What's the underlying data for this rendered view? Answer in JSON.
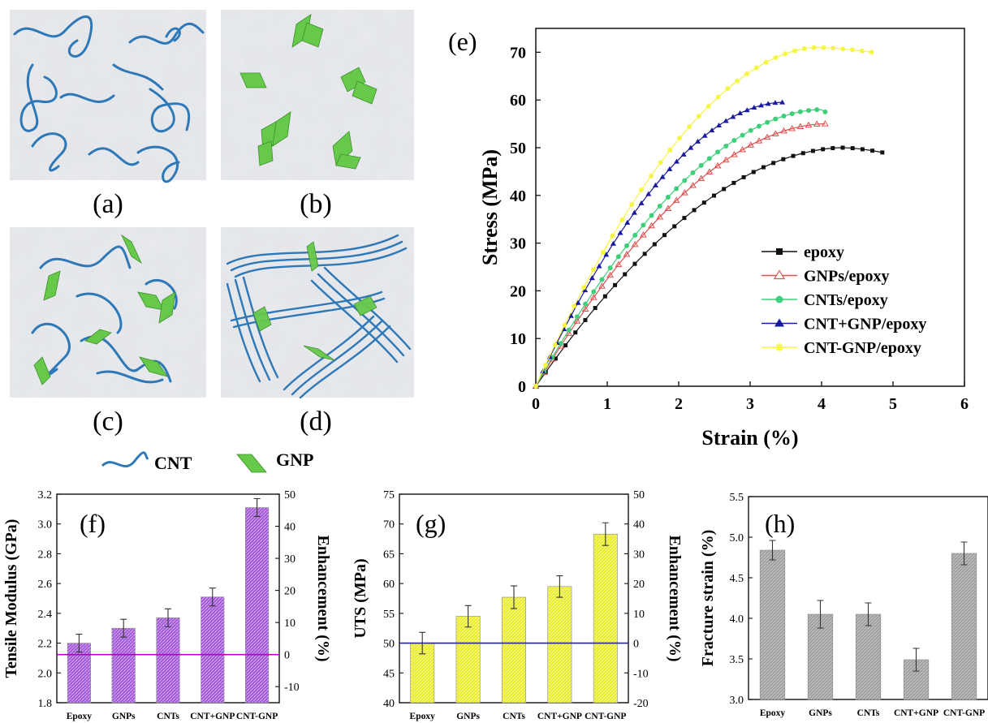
{
  "schematics": [
    {
      "label": "(a)",
      "kind": "cnt"
    },
    {
      "label": "(b)",
      "kind": "gnp"
    },
    {
      "label": "(c)",
      "kind": "mixed"
    },
    {
      "label": "(d)",
      "kind": "hybrid"
    }
  ],
  "schematic_legend": {
    "cnt_label": "CNT",
    "gnp_label": "GNP"
  },
  "colors": {
    "cnt": "#2f78b7",
    "gnp": "#66c94a",
    "purple_bar": "#a35ad8",
    "yellow_bar": "#e8ec2a",
    "gray_bar": "#a8a8a8",
    "base_line_f": "#b400c8",
    "base_line_g": "#28288c"
  },
  "chart_data": [
    {
      "panel": "(e)",
      "type": "line",
      "xlabel": "Strain (%)",
      "ylabel": "Stress (MPa)",
      "xlim": [
        0,
        6
      ],
      "ylim": [
        0,
        75
      ],
      "xticks": [
        0,
        1,
        2,
        3,
        4,
        5,
        6
      ],
      "yticks": [
        0,
        10,
        20,
        30,
        40,
        50,
        60,
        70
      ],
      "legend_position": "bottom-right",
      "series": [
        {
          "name": "epoxy",
          "color": "#111111",
          "marker": "square",
          "ultimate": 50,
          "peak_strain": 4.3,
          "end_strain": 4.85,
          "end_stress": 49
        },
        {
          "name": "GNPs/epoxy",
          "color": "#e05050",
          "marker": "triangle-open",
          "ultimate": 55,
          "peak_strain": 4.05,
          "end_strain": 4.05,
          "end_stress": 54.5
        },
        {
          "name": "CNTs/epoxy",
          "color": "#3ecf7a",
          "marker": "circle",
          "ultimate": 58,
          "peak_strain": 4.0,
          "end_strain": 4.05,
          "end_stress": 57.5
        },
        {
          "name": "CNT+GNP/epoxy",
          "color": "#1a1aa0",
          "marker": "triangle",
          "ultimate": 59.5,
          "peak_strain": 3.45,
          "end_strain": 3.45,
          "end_stress": 59.5
        },
        {
          "name": "CNT-GNP/epoxy",
          "color": "#f5f542",
          "marker": "star",
          "ultimate": 71,
          "peak_strain": 3.95,
          "end_strain": 4.7,
          "end_stress": 70
        }
      ]
    },
    {
      "panel": "(f)",
      "type": "bar",
      "categories": [
        "Epoxy",
        "GNPs",
        "CNTs",
        "CNT+GNP",
        "CNT-GNP"
      ],
      "values": [
        2.2,
        2.3,
        2.37,
        2.51,
        3.11
      ],
      "errors": [
        0.06,
        0.06,
        0.06,
        0.06,
        0.06
      ],
      "ylabel": "Tensile Modulus (GPa)",
      "ylim": [
        1.8,
        3.2
      ],
      "yticks": [
        "1.8",
        "2.0",
        "2.2",
        "2.4",
        "2.6",
        "2.8",
        "3.0",
        "3.2"
      ],
      "y2label": "Enhancement (%)",
      "y2lim": [
        -15,
        50
      ],
      "y2ticks": [
        "-10",
        "0",
        "10",
        "20",
        "30",
        "40",
        "50"
      ],
      "baseline_y2": 0
    },
    {
      "panel": "(g)",
      "type": "bar",
      "categories": [
        "Epoxy",
        "GNPs",
        "CNTs",
        "CNT+GNP",
        "CNT-GNP"
      ],
      "values": [
        50,
        54.5,
        57.7,
        59.5,
        68.3
      ],
      "errors": [
        1.8,
        1.8,
        1.9,
        1.8,
        1.9
      ],
      "ylabel": "UTS (MPa)",
      "ylim": [
        40,
        75
      ],
      "yticks": [
        "40",
        "45",
        "50",
        "55",
        "60",
        "65",
        "70",
        "75"
      ],
      "y2label": "Enhancement (%)",
      "y2lim": [
        -20,
        50
      ],
      "y2ticks": [
        "-20",
        "-10",
        "0",
        "10",
        "20",
        "30",
        "40",
        "50"
      ],
      "baseline_y2": 0
    },
    {
      "panel": "(h)",
      "type": "bar",
      "categories": [
        "Epoxy",
        "GNPs",
        "CNTs",
        "CNT+GNP",
        "CNT-GNP"
      ],
      "values": [
        4.84,
        4.05,
        4.05,
        3.49,
        4.8
      ],
      "errors": [
        0.12,
        0.17,
        0.14,
        0.14,
        0.14
      ],
      "ylabel": "Fracture strain (%)",
      "ylim": [
        3.0,
        5.5
      ],
      "yticks": [
        "3.0",
        "3.5",
        "4.0",
        "4.5",
        "5.0",
        "5.5"
      ]
    }
  ]
}
